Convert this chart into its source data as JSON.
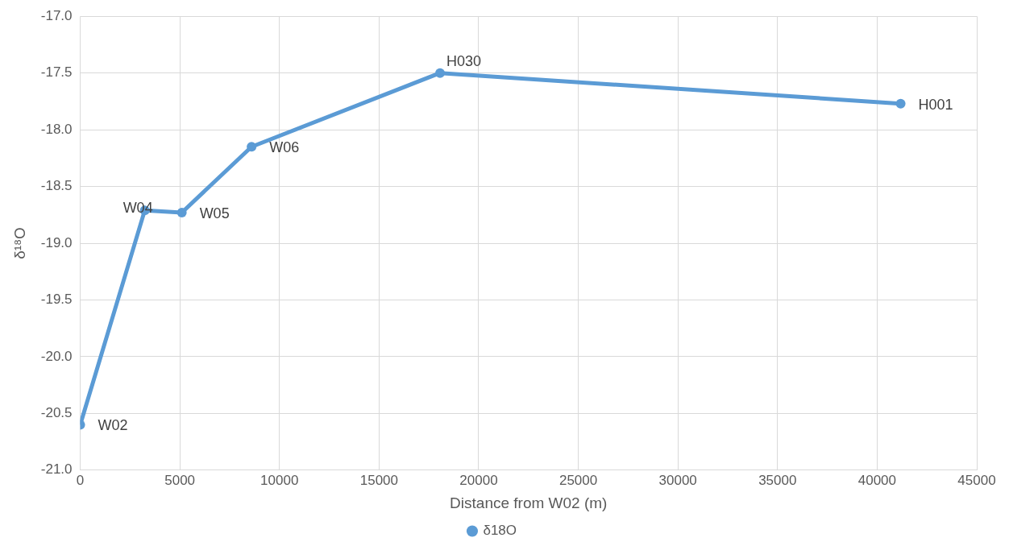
{
  "chart_data": {
    "type": "line",
    "xlabel": "Distance from W02 (m)",
    "ylabel": "δ¹⁸O",
    "series": [
      {
        "name": "δ18O",
        "color": "#5b9bd5",
        "x": [
          0,
          3240,
          5100,
          8600,
          18060,
          41180
        ],
        "values": [
          -20.6,
          -18.71,
          -18.73,
          -18.15,
          -17.5,
          -17.77
        ]
      }
    ],
    "xlim": [
      0,
      45000
    ],
    "xticks": [
      0,
      5000,
      10000,
      15000,
      20000,
      25000,
      30000,
      35000,
      40000,
      45000
    ],
    "ylim": [
      -21,
      -17
    ],
    "yticks": [
      {
        "value": -21,
        "label": "-21.0"
      },
      {
        "value": -20.5,
        "label": "-20.5"
      },
      {
        "value": -20,
        "label": "-20.0"
      },
      {
        "value": -19.5,
        "label": "-19.5"
      },
      {
        "value": -19,
        "label": "-19.0"
      },
      {
        "value": -18.5,
        "label": "-18.5"
      },
      {
        "value": -18,
        "label": "-18.0"
      },
      {
        "value": -17.5,
        "label": "-17.5"
      },
      {
        "value": -17,
        "label": "-17.0"
      }
    ],
    "annotations": [
      {
        "text": "W02",
        "x": 0,
        "y": -20.6
      },
      {
        "text": "W04",
        "x": 3240,
        "y": -18.71
      },
      {
        "text": "W05",
        "x": 5100,
        "y": -18.73
      },
      {
        "text": "W06",
        "x": 8600,
        "y": -18.15
      },
      {
        "text": "H030",
        "x": 18060,
        "y": -17.5
      },
      {
        "text": "H001",
        "x": 41180,
        "y": -17.77
      }
    ],
    "grid": true,
    "legend": "bottom",
    "marker": "circle",
    "line_style": "solid"
  }
}
